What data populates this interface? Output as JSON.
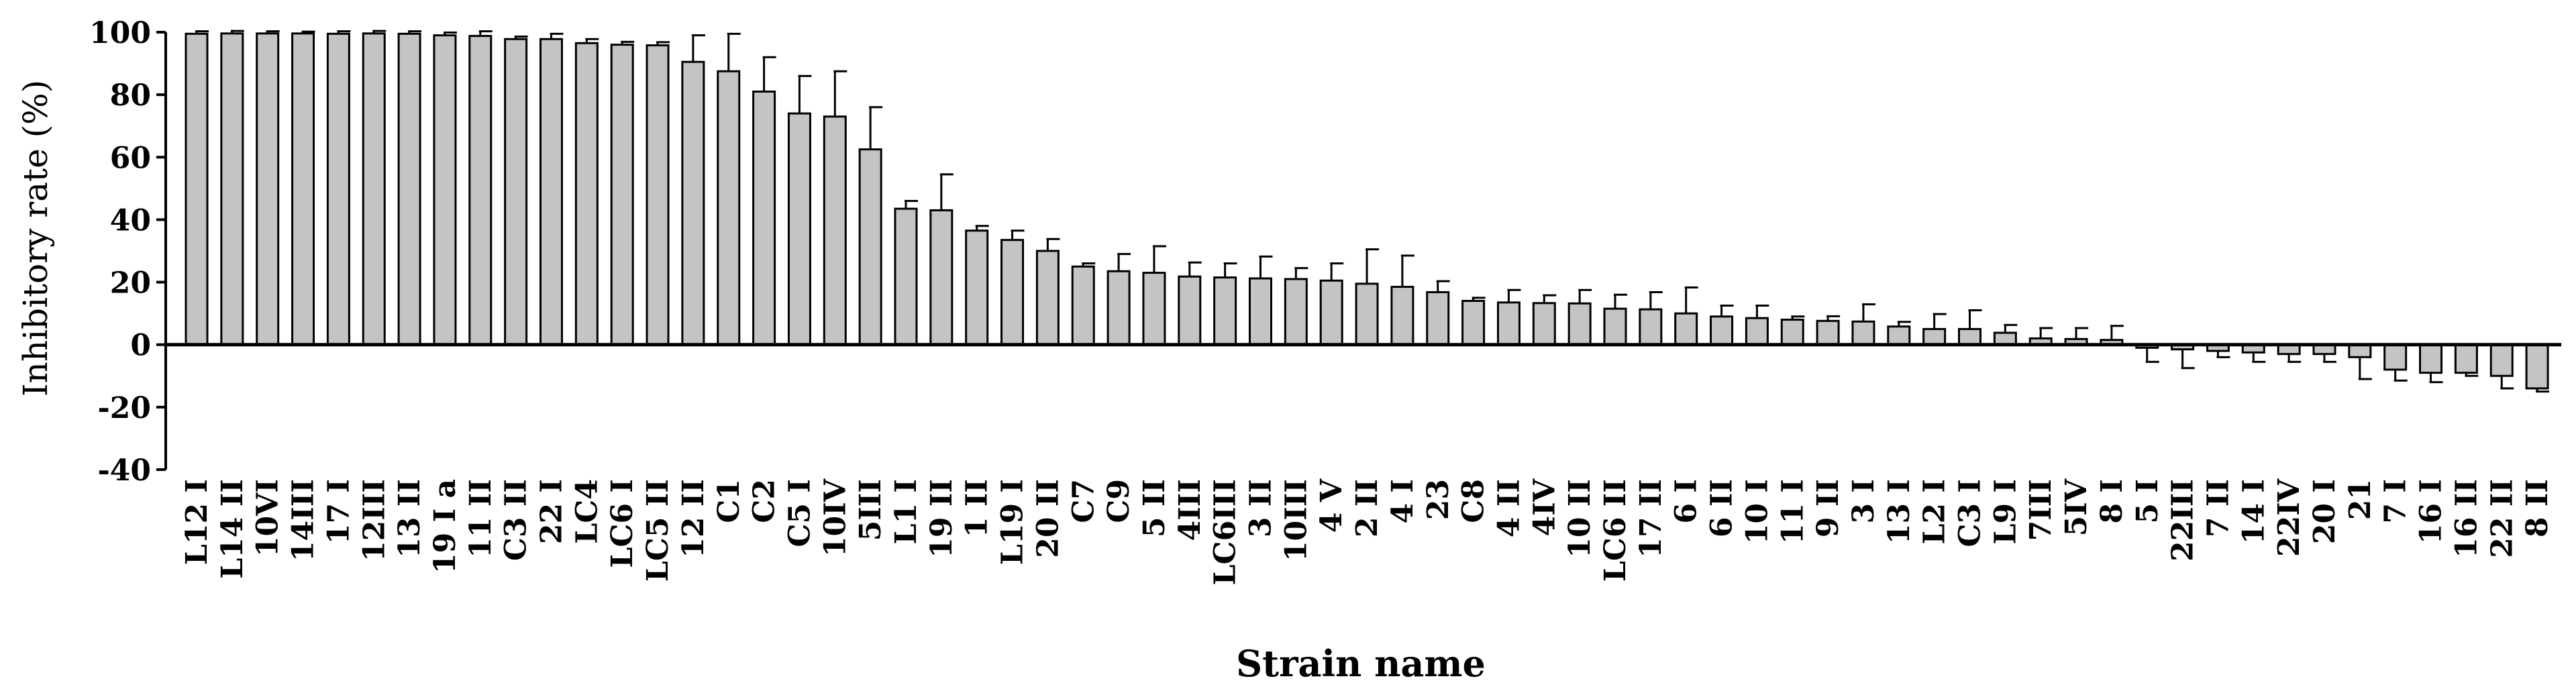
{
  "chart_data": {
    "type": "bar",
    "xlabel": "Strain name",
    "ylabel": "Inhibitory rate (%)",
    "ylim": [
      -40,
      100
    ],
    "yticks": [
      "100",
      "80",
      "60",
      "40",
      "20",
      "0",
      "-20",
      "-40"
    ],
    "categories": [
      "L12 I",
      "L14 II",
      "10VI",
      "14III",
      "17 I",
      "12III",
      "13 II",
      "19 I a",
      "11 II",
      "C3 II",
      "22 I",
      "LC4",
      "LC6 I",
      "LC5 II",
      "12 II",
      "C1",
      "C2",
      "C5 I",
      "10IV",
      "5III",
      "L1 I",
      "19 II",
      "1 II",
      "L19 I",
      "20 II",
      "C7",
      "C9",
      "5 II",
      "4III",
      "LC6III",
      "3 II",
      "10III",
      "4 V",
      "2 II",
      "4 I",
      "23",
      "C8",
      "4 II",
      "4IV",
      "10 II",
      "LC6 II",
      "17 II",
      "6 I",
      "6 II",
      "10 I",
      "11 I",
      "9 II",
      "3 I",
      "13 I",
      "L2 I",
      "C3 I",
      "L9 I",
      "7III",
      "5IV",
      "8 I",
      "5 I",
      "22III",
      "7 II",
      "14 I",
      "22IV",
      "20 I",
      "21",
      "7 I",
      "16 I",
      "16 II",
      "22 II",
      "8 II"
    ],
    "values": [
      99.5,
      99.6,
      99.6,
      99.6,
      99.5,
      99.6,
      99.5,
      99.0,
      98.8,
      97.8,
      97.8,
      96.5,
      96.0,
      95.8,
      90.5,
      87.5,
      81.0,
      74.0,
      73.0,
      62.5,
      43.5,
      43.0,
      36.5,
      33.5,
      30.0,
      25.0,
      23.5,
      23.0,
      21.8,
      21.5,
      21.2,
      21.0,
      20.5,
      19.5,
      18.5,
      16.8,
      14.0,
      13.5,
      13.3,
      13.2,
      11.5,
      11.3,
      10.0,
      9.0,
      8.5,
      8.0,
      7.6,
      7.4,
      5.8,
      5.0,
      5.0,
      3.8,
      2.0,
      1.8,
      1.5,
      -1.0,
      -1.5,
      -2.0,
      -2.5,
      -3.0,
      -3.0,
      -4.0,
      -8.0,
      -9.0,
      -9.0,
      -10.0,
      -14.0
    ],
    "errors": [
      0.8,
      0.8,
      0.7,
      0.6,
      0.8,
      0.8,
      0.8,
      0.9,
      1.5,
      0.8,
      1.7,
      1.3,
      0.9,
      1.0,
      8.5,
      12.0,
      11.0,
      12.0,
      14.5,
      13.5,
      2.5,
      11.5,
      1.5,
      3.0,
      3.8,
      1.0,
      5.5,
      8.5,
      4.5,
      4.5,
      7.0,
      3.5,
      5.5,
      11.0,
      10.0,
      3.5,
      1.0,
      4.0,
      2.5,
      4.3,
      4.5,
      5.5,
      8.3,
      3.5,
      4.0,
      1.0,
      1.5,
      5.5,
      1.5,
      4.8,
      6.0,
      2.5,
      3.3,
      3.5,
      4.5,
      4.5,
      6.0,
      2.0,
      3.0,
      2.5,
      2.5,
      7.0,
      3.5,
      3.0,
      1.0,
      4.0,
      1.0
    ]
  },
  "colors": {
    "bar_fill": "#c4c4c4",
    "stroke": "#000000",
    "background": "#ffffff"
  }
}
